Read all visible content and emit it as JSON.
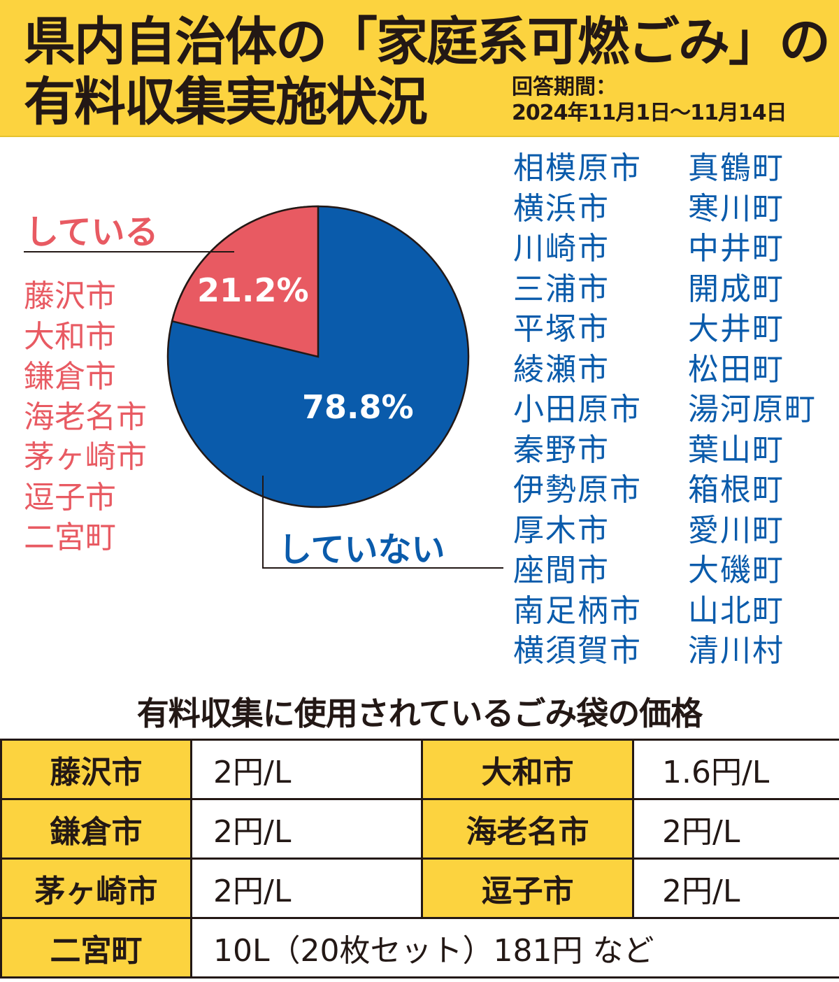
{
  "header": {
    "title_line1": "県内自治体の「家庭系可燃ごみ」の",
    "title_line2": "有料収集実施状況",
    "period_label": "回答期間：",
    "period_value": "2024年11月1日〜11月14日"
  },
  "colors": {
    "header_bg": "#fcd33f",
    "yes": "#e85a62",
    "no": "#0a5bab",
    "text": "#231815"
  },
  "chart_data": {
    "type": "pie",
    "title": "県内自治体の「家庭系可燃ごみ」の有料収集実施状況",
    "categories": [
      "している",
      "していない"
    ],
    "values": [
      21.2,
      78.8
    ],
    "value_labels": [
      "21.2%",
      "78.8%"
    ],
    "colors": [
      "#e85a62",
      "#0a5bab"
    ],
    "start_angle": "12 o'clock, している slice counter-clockwise",
    "annotations": {
      "している": [
        "藤沢市",
        "大和市",
        "鎌倉市",
        "海老名市",
        "茅ヶ崎市",
        "逗子市",
        "二宮町"
      ],
      "していない": [
        "相模原市",
        "横浜市",
        "川崎市",
        "三浦市",
        "平塚市",
        "綾瀬市",
        "小田原市",
        "秦野市",
        "伊勢原市",
        "厚木市",
        "座間市",
        "南足柄市",
        "横須賀市",
        "真鶴町",
        "寒川町",
        "中井町",
        "開成町",
        "大井町",
        "松田町",
        "湯河原町",
        "葉山町",
        "箱根町",
        "愛川町",
        "大磯町",
        "山北町",
        "清川村"
      ]
    }
  },
  "pie": {
    "yes_label": "している",
    "no_label": "していない",
    "yes_pct": "21.2%",
    "no_pct": "78.8%"
  },
  "yes_list": [
    "藤沢市",
    "大和市",
    "鎌倉市",
    "海老名市",
    "茅ヶ崎市",
    "逗子市",
    "二宮町"
  ],
  "no_list_col1": [
    "相模原市",
    "横浜市",
    "川崎市",
    "三浦市",
    "平塚市",
    "綾瀬市",
    "小田原市",
    "秦野市",
    "伊勢原市",
    "厚木市",
    "座間市",
    "南足柄市",
    "横須賀市"
  ],
  "no_list_col2": [
    "真鶴町",
    "寒川町",
    "中井町",
    "開成町",
    "大井町",
    "松田町",
    "湯河原町",
    "葉山町",
    "箱根町",
    "愛川町",
    "大磯町",
    "山北町",
    "清川村"
  ],
  "price_table": {
    "title": "有料収集に使用されているごみ袋の価格",
    "rows": [
      [
        {
          "muni": "藤沢市",
          "price": "2円/L"
        },
        {
          "muni": "大和市",
          "price": "1.6円/L"
        }
      ],
      [
        {
          "muni": "鎌倉市",
          "price": "2円/L"
        },
        {
          "muni": "海老名市",
          "price": "2円/L"
        }
      ],
      [
        {
          "muni": "茅ヶ崎市",
          "price": "2円/L"
        },
        {
          "muni": "逗子市",
          "price": "2円/L"
        }
      ]
    ],
    "last_row": {
      "muni": "二宮町",
      "price": "10L（20枚セット）181円 など"
    }
  }
}
